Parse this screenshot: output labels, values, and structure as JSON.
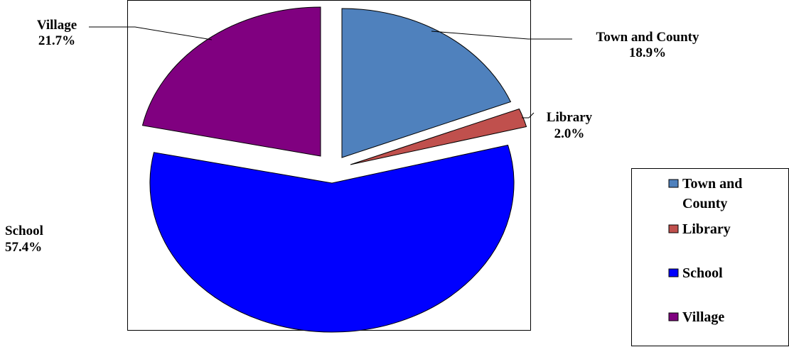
{
  "chart_data": {
    "type": "pie",
    "title": "",
    "slices": [
      {
        "label": "Town and County",
        "value": 18.9,
        "display": "18.9%",
        "color": "#4F81BD"
      },
      {
        "label": "Library",
        "value": 2.0,
        "display": "2.0%",
        "color": "#C0504D"
      },
      {
        "label": "School",
        "value": 57.4,
        "display": "57.4%",
        "color": "#0000FF"
      },
      {
        "label": "Village",
        "value": 21.7,
        "display": "21.7%",
        "color": "#800080"
      }
    ],
    "legend": {
      "placement": "right",
      "entries": [
        "Town and County",
        "Library",
        "School",
        "Village"
      ]
    }
  }
}
